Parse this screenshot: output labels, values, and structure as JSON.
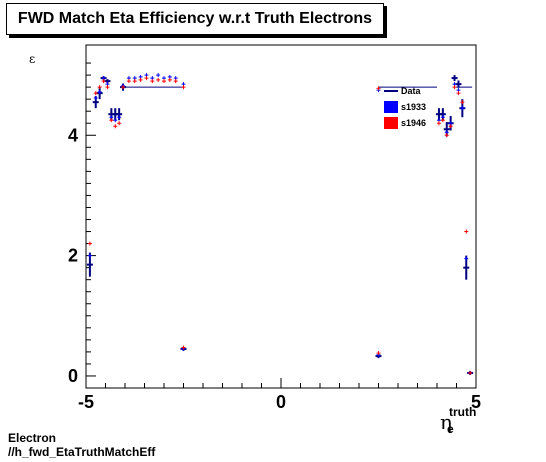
{
  "title": "FWD Match Eta Efficiency w.r.t Truth Electrons",
  "footer": {
    "line1": "Electron",
    "line2": "//h_fwd_EtaTruthMatchEff"
  },
  "chart_data": {
    "type": "scatter",
    "title": "FWD Match Eta Efficiency w.r.t Truth Electrons",
    "ylabel": "ε",
    "xlabel_main": "η",
    "xlabel_sup": "truth",
    "xlabel_sub": "e",
    "xlim": [
      -5,
      5
    ],
    "ylim": [
      -0.2,
      5.5
    ],
    "x_ticks": [
      {
        "v": -5,
        "label": "-5"
      },
      {
        "v": 0,
        "label": "0"
      },
      {
        "v": 5,
        "label": "5"
      }
    ],
    "y_ticks": [
      {
        "v": 0,
        "label": "0"
      },
      {
        "v": 2,
        "label": "2"
      },
      {
        "v": 4,
        "label": "4"
      }
    ],
    "legend": [
      {
        "label": "Data",
        "color": "#000080",
        "style": "line"
      },
      {
        "label": "s1933",
        "color": "#0000ff",
        "style": "box"
      },
      {
        "label": "s1946",
        "color": "#ff0000",
        "style": "box"
      }
    ],
    "series": [
      {
        "name": "Data",
        "color": "#000080",
        "style": "profile",
        "points": [
          {
            "x": -4.9,
            "y": 1.85,
            "ex": 0.05,
            "ey": 0.2
          },
          {
            "x": -4.75,
            "y": 4.55,
            "ex": 0.05,
            "ey": 0.1
          },
          {
            "x": -4.65,
            "y": 4.7,
            "ex": 0.05,
            "ey": 0.1
          },
          {
            "x": -4.55,
            "y": 4.95,
            "ex": 0.05,
            "ey": 0.03
          },
          {
            "x": -4.45,
            "y": 4.9,
            "ex": 0.05,
            "ey": 0.03
          },
          {
            "x": -4.35,
            "y": 4.35,
            "ex": 0.05,
            "ey": 0.1
          },
          {
            "x": -4.25,
            "y": 4.35,
            "ex": 0.05,
            "ey": 0.1
          },
          {
            "x": -4.15,
            "y": 4.35,
            "ex": 0.05,
            "ey": 0.1
          },
          {
            "x": -4.05,
            "y": 4.8,
            "ex": 0.05,
            "ey": 0.06
          },
          {
            "x": -2.5,
            "y": 0.45,
            "ex": 0.05,
            "ey": 0.03
          },
          {
            "x": 2.5,
            "y": 0.33,
            "ex": 0.05,
            "ey": 0.03
          },
          {
            "x": 4.05,
            "y": 4.35,
            "ex": 0.05,
            "ey": 0.1
          },
          {
            "x": 4.15,
            "y": 4.35,
            "ex": 0.05,
            "ey": 0.1
          },
          {
            "x": 4.25,
            "y": 4.1,
            "ex": 0.05,
            "ey": 0.12
          },
          {
            "x": 4.35,
            "y": 4.2,
            "ex": 0.05,
            "ey": 0.12
          },
          {
            "x": 4.45,
            "y": 4.95,
            "ex": 0.05,
            "ey": 0.05
          },
          {
            "x": 4.55,
            "y": 4.85,
            "ex": 0.05,
            "ey": 0.06
          },
          {
            "x": 4.65,
            "y": 4.45,
            "ex": 0.05,
            "ey": 0.15
          },
          {
            "x": 4.75,
            "y": 1.8,
            "ex": 0.05,
            "ey": 0.2
          },
          {
            "x": 4.85,
            "y": 0.05,
            "ex": 0.05,
            "ey": 0.03
          }
        ],
        "steps": [
          {
            "x1": -4.0,
            "x2": -2.5,
            "y": 4.8
          },
          {
            "x1": 2.5,
            "x2": 4.0,
            "y": 4.8
          },
          {
            "x1": 4.5,
            "x2": 4.9,
            "y": 4.8
          }
        ]
      },
      {
        "name": "s1933",
        "color": "#0000ff",
        "style": "markers",
        "points": [
          {
            "x": -4.9,
            "y": 2.0
          },
          {
            "x": -4.75,
            "y": 4.62
          },
          {
            "x": -4.65,
            "y": 4.72
          },
          {
            "x": -4.55,
            "y": 4.95
          },
          {
            "x": -4.45,
            "y": 4.85
          },
          {
            "x": -4.35,
            "y": 4.3
          },
          {
            "x": -4.25,
            "y": 4.25
          },
          {
            "x": -4.15,
            "y": 4.3
          },
          {
            "x": -4.05,
            "y": 4.82
          },
          {
            "x": -3.9,
            "y": 4.95
          },
          {
            "x": -3.75,
            "y": 4.95
          },
          {
            "x": -3.6,
            "y": 4.97
          },
          {
            "x": -3.45,
            "y": 5.0
          },
          {
            "x": -3.3,
            "y": 4.95
          },
          {
            "x": -3.15,
            "y": 5.0
          },
          {
            "x": -3.0,
            "y": 4.95
          },
          {
            "x": -2.85,
            "y": 4.97
          },
          {
            "x": -2.7,
            "y": 4.95
          },
          {
            "x": -2.5,
            "y": 4.85
          },
          {
            "x": -2.5,
            "y": 0.45
          },
          {
            "x": 2.5,
            "y": 0.35
          },
          {
            "x": 2.5,
            "y": 4.75
          },
          {
            "x": 4.05,
            "y": 4.25
          },
          {
            "x": 4.15,
            "y": 4.3
          },
          {
            "x": 4.25,
            "y": 4.05
          },
          {
            "x": 4.35,
            "y": 4.2
          },
          {
            "x": 4.45,
            "y": 4.85
          },
          {
            "x": 4.55,
            "y": 4.75
          },
          {
            "x": 4.65,
            "y": 4.45
          },
          {
            "x": 4.75,
            "y": 1.95
          },
          {
            "x": 4.85,
            "y": 0.05
          }
        ]
      },
      {
        "name": "s1946",
        "color": "#ff0000",
        "style": "markers",
        "points": [
          {
            "x": -4.9,
            "y": 2.2
          },
          {
            "x": -4.75,
            "y": 4.7
          },
          {
            "x": -4.65,
            "y": 4.8
          },
          {
            "x": -4.55,
            "y": 4.9
          },
          {
            "x": -4.45,
            "y": 4.8
          },
          {
            "x": -4.35,
            "y": 4.25
          },
          {
            "x": -4.25,
            "y": 4.15
          },
          {
            "x": -4.15,
            "y": 4.2
          },
          {
            "x": -4.05,
            "y": 4.8
          },
          {
            "x": -3.9,
            "y": 4.9
          },
          {
            "x": -3.75,
            "y": 4.9
          },
          {
            "x": -3.6,
            "y": 4.92
          },
          {
            "x": -3.45,
            "y": 4.95
          },
          {
            "x": -3.3,
            "y": 4.9
          },
          {
            "x": -3.15,
            "y": 4.92
          },
          {
            "x": -3.0,
            "y": 4.9
          },
          {
            "x": -2.85,
            "y": 4.92
          },
          {
            "x": -2.7,
            "y": 4.9
          },
          {
            "x": -2.5,
            "y": 4.8
          },
          {
            "x": -2.5,
            "y": 0.47
          },
          {
            "x": 2.5,
            "y": 0.38
          },
          {
            "x": 2.5,
            "y": 4.78
          },
          {
            "x": 4.05,
            "y": 4.2
          },
          {
            "x": 4.15,
            "y": 4.25
          },
          {
            "x": 4.25,
            "y": 4.0
          },
          {
            "x": 4.35,
            "y": 4.15
          },
          {
            "x": 4.45,
            "y": 4.8
          },
          {
            "x": 4.55,
            "y": 4.7
          },
          {
            "x": 4.65,
            "y": 4.55
          },
          {
            "x": 4.75,
            "y": 2.4
          },
          {
            "x": 4.85,
            "y": 0.05
          }
        ]
      }
    ]
  }
}
